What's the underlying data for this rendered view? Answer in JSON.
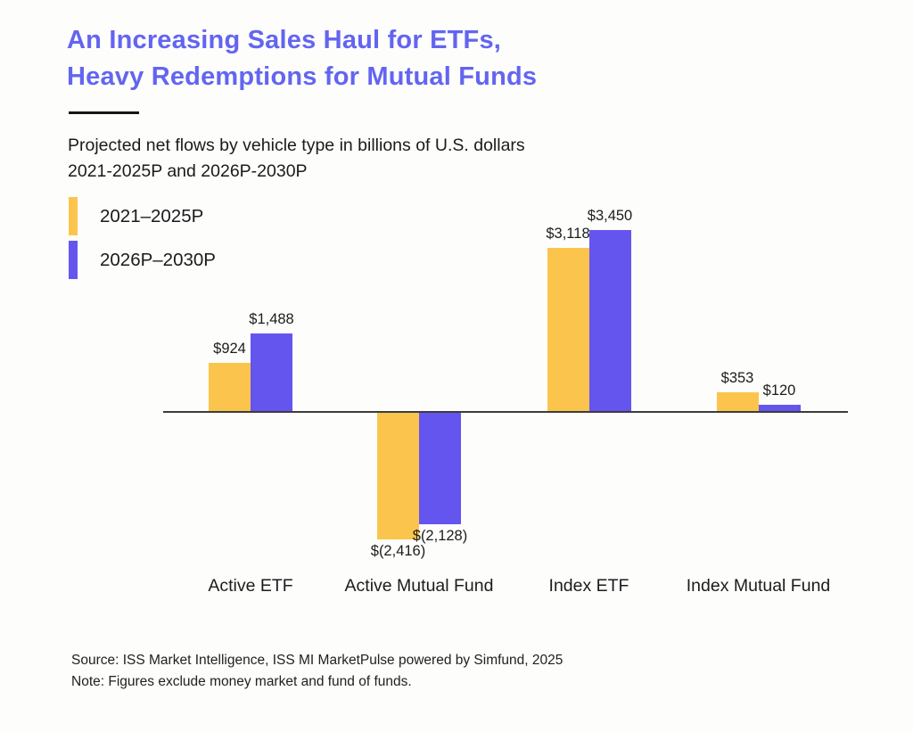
{
  "header": {
    "title_line1": "An Increasing Sales Haul for ETFs,",
    "title_line2": "Heavy Redemptions for Mutual Funds",
    "subtitle_line1": "Projected net flows by vehicle type in billions of U.S. dollars",
    "subtitle_line2": "2021-2025P and 2026P-2030P"
  },
  "legend": {
    "items": [
      {
        "label": "2021–2025P",
        "color": "#fbc54d"
      },
      {
        "label": "2026P–2030P",
        "color": "#6555ef"
      }
    ]
  },
  "chart_data": {
    "type": "bar",
    "title": "An Increasing Sales Haul for ETFs, Heavy Redemptions for Mutual Funds",
    "subtitle": "Projected net flows by vehicle type in billions of U.S. dollars 2021-2025P and 2026P-2030P",
    "categories": [
      "Active ETF",
      "Active Mutual Fund",
      "Index ETF",
      "Index Mutual Fund"
    ],
    "series": [
      {
        "name": "2021–2025P",
        "color": "#fbc54d",
        "values": [
          924,
          -2416,
          3118,
          353
        ],
        "labels": [
          "$924",
          "$(2,416)",
          "$3,118",
          "$353"
        ]
      },
      {
        "name": "2026P–2030P",
        "color": "#6555ef",
        "values": [
          1488,
          -2128,
          3450,
          120
        ],
        "labels": [
          "$1,488",
          "$(2,128)",
          "$3,450",
          "$120"
        ]
      }
    ],
    "unit": "billions of U.S. dollars",
    "ylim": [
      -2600,
      3600
    ],
    "grid": false,
    "legend_position": "top-left",
    "zero_line": true
  },
  "footer": {
    "source": "Source: ISS Market Intelligence, ISS MI MarketPulse powered by Simfund, 2025",
    "note": "Note: Figures exclude money market and fund of funds."
  }
}
